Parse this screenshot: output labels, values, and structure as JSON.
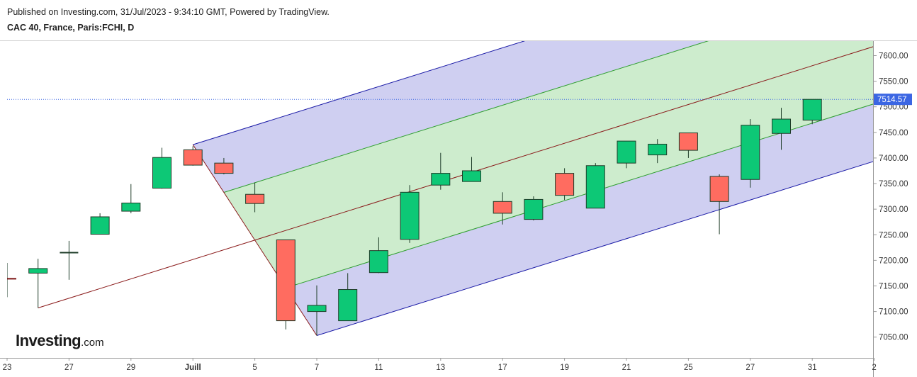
{
  "header": {
    "published": "Published on Investing.com, 31/Jul/2023 - 9:34:10 GMT, Powered by TradingView.",
    "symbol": "CAC 40, France, Paris:FCHI, D"
  },
  "logo": {
    "main": "Investing",
    "suffix": ".com"
  },
  "colors": {
    "up": "#0dc876",
    "down": "#ff6c60",
    "wick": "#1e3c28",
    "outer_fill": "#ccccf0",
    "inner_fill": "#cdeccd",
    "outer_line": "#1a1aa6",
    "inner_line": "#2e9e2e",
    "median_line": "#8a1a1a",
    "price_tag": "#3b66e3",
    "price_line": "#3b66e3"
  },
  "chart_data": {
    "type": "candlestick",
    "ylim": [
      7000,
      7630
    ],
    "y_ticks": [
      7050,
      7100,
      7150,
      7200,
      7250,
      7300,
      7350,
      7400,
      7450,
      7500,
      7550,
      7600
    ],
    "y_tick_labels": [
      "7050.00",
      "7100.00",
      "7150.00",
      "7200.00",
      "7250.00",
      "7300.00",
      "7350.00",
      "7400.00",
      "7450.00",
      "7500.00",
      "7550.00",
      "7600.00"
    ],
    "x_ticks": [
      {
        "slot": 0,
        "label": "23"
      },
      {
        "slot": 2,
        "label": "27"
      },
      {
        "slot": 4,
        "label": "29"
      },
      {
        "slot": 6,
        "label": "Juill"
      },
      {
        "slot": 8,
        "label": "5"
      },
      {
        "slot": 10,
        "label": "7"
      },
      {
        "slot": 12,
        "label": "11"
      },
      {
        "slot": 14,
        "label": "13"
      },
      {
        "slot": 16,
        "label": "17"
      },
      {
        "slot": 18,
        "label": "19"
      },
      {
        "slot": 20,
        "label": "21"
      },
      {
        "slot": 22,
        "label": "25"
      },
      {
        "slot": 24,
        "label": "27"
      },
      {
        "slot": 26,
        "label": "31"
      },
      {
        "slot": 28,
        "label": "2"
      }
    ],
    "last_price": 7514.57,
    "last_price_label": "7514.57",
    "candles": [
      {
        "slot": 0,
        "o": 7164,
        "h": 7195,
        "l": 7128,
        "c": 7164
      },
      {
        "slot": 1,
        "o": 7175,
        "h": 7203,
        "l": 7107,
        "c": 7184
      },
      {
        "slot": 2,
        "o": 7215,
        "h": 7238,
        "l": 7162,
        "c": 7215
      },
      {
        "slot": 3,
        "o": 7251,
        "h": 7292,
        "l": 7251,
        "c": 7285
      },
      {
        "slot": 4,
        "o": 7296,
        "h": 7349,
        "l": 7292,
        "c": 7312
      },
      {
        "slot": 5,
        "o": 7341,
        "h": 7420,
        "l": 7340,
        "c": 7401
      },
      {
        "slot": 6,
        "o": 7416,
        "h": 7423,
        "l": 7385,
        "c": 7386
      },
      {
        "slot": 7,
        "o": 7390,
        "h": 7400,
        "l": 7368,
        "c": 7370
      },
      {
        "slot": 8,
        "o": 7329,
        "h": 7352,
        "l": 7294,
        "c": 7311
      },
      {
        "slot": 9,
        "o": 7240,
        "h": 7240,
        "l": 7065,
        "c": 7082
      },
      {
        "slot": 10,
        "o": 7100,
        "h": 7151,
        "l": 7053,
        "c": 7112
      },
      {
        "slot": 11,
        "o": 7082,
        "h": 7175,
        "l": 7082,
        "c": 7143
      },
      {
        "slot": 12,
        "o": 7176,
        "h": 7245,
        "l": 7175,
        "c": 7219
      },
      {
        "slot": 13,
        "o": 7241,
        "h": 7347,
        "l": 7234,
        "c": 7333
      },
      {
        "slot": 14,
        "o": 7347,
        "h": 7410,
        "l": 7338,
        "c": 7370
      },
      {
        "slot": 15,
        "o": 7354,
        "h": 7402,
        "l": 7354,
        "c": 7375
      },
      {
        "slot": 16,
        "o": 7315,
        "h": 7333,
        "l": 7270,
        "c": 7292
      },
      {
        "slot": 17,
        "o": 7280,
        "h": 7325,
        "l": 7278,
        "c": 7319
      },
      {
        "slot": 18,
        "o": 7370,
        "h": 7380,
        "l": 7318,
        "c": 7327
      },
      {
        "slot": 19,
        "o": 7302,
        "h": 7390,
        "l": 7302,
        "c": 7385
      },
      {
        "slot": 20,
        "o": 7390,
        "h": 7433,
        "l": 7380,
        "c": 7433
      },
      {
        "slot": 21,
        "o": 7406,
        "h": 7437,
        "l": 7390,
        "c": 7427
      },
      {
        "slot": 22,
        "o": 7449,
        "h": 7449,
        "l": 7400,
        "c": 7415
      },
      {
        "slot": 23,
        "o": 7364,
        "h": 7368,
        "l": 7251,
        "c": 7315
      },
      {
        "slot": 24,
        "o": 7358,
        "h": 7476,
        "l": 7342,
        "c": 7464
      },
      {
        "slot": 25,
        "o": 7448,
        "h": 7498,
        "l": 7416,
        "c": 7476
      },
      {
        "slot": 26,
        "o": 7474,
        "h": 7514.57,
        "l": 7466,
        "c": 7514.57
      }
    ],
    "pitchfork": {
      "pivot_a": {
        "slot": 1,
        "price": 7107
      },
      "pivot_b": {
        "slot": 6,
        "price": 7426
      },
      "pivot_c": {
        "slot": 10,
        "price": 7053
      },
      "outer_fill": "blue-violet",
      "inner_fill": "light-green"
    }
  }
}
